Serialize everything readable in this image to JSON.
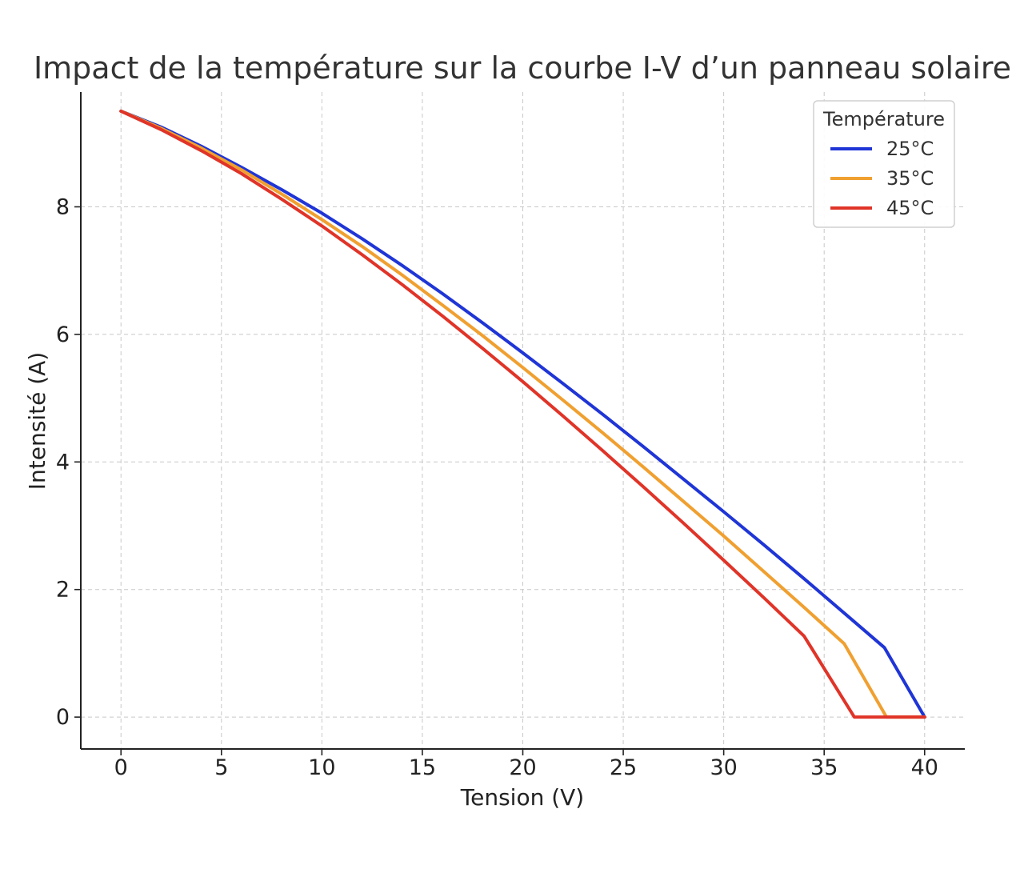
{
  "chart_data": {
    "type": "line",
    "title": "Impact de la température sur la courbe I-V d’un panneau solaire",
    "xlabel": "Tension (V)",
    "ylabel": "Intensité (A)",
    "xlim": [
      -2,
      42
    ],
    "ylim": [
      -0.5,
      9.8
    ],
    "xticks": [
      0,
      5,
      10,
      15,
      20,
      25,
      30,
      35,
      40
    ],
    "yticks": [
      0,
      2,
      4,
      6,
      8
    ],
    "grid": true,
    "legend": {
      "title": "Température",
      "position": "top-right"
    },
    "series": [
      {
        "name": "25°C",
        "color": "#1f35d6",
        "x": [
          0,
          2,
          4,
          6,
          8,
          10,
          12,
          14,
          16,
          18,
          20,
          22,
          24,
          26,
          28,
          30,
          32,
          34,
          36,
          38,
          40
        ],
        "y": [
          9.5,
          9.25,
          8.95,
          8.62,
          8.27,
          7.9,
          7.5,
          7.08,
          6.64,
          6.18,
          5.71,
          5.23,
          4.74,
          4.24,
          3.73,
          3.22,
          2.7,
          2.17,
          1.63,
          1.09,
          0
        ]
      },
      {
        "name": "35°C",
        "color": "#f0a030",
        "x": [
          0,
          2,
          4,
          6,
          8,
          10,
          12,
          14,
          16,
          18,
          20,
          22,
          24,
          26,
          28,
          30,
          32,
          34,
          36,
          38.1,
          40
        ],
        "y": [
          9.5,
          9.23,
          8.92,
          8.58,
          8.2,
          7.8,
          7.38,
          6.93,
          6.46,
          5.98,
          5.48,
          4.97,
          4.45,
          3.92,
          3.38,
          2.84,
          2.28,
          1.72,
          1.15,
          0,
          0
        ]
      },
      {
        "name": "45°C",
        "color": "#e03428",
        "x": [
          0,
          2,
          4,
          6,
          8,
          10,
          12,
          14,
          16,
          18,
          20,
          22,
          24,
          26,
          28,
          30,
          32,
          34,
          36.5,
          40
        ],
        "y": [
          9.5,
          9.21,
          8.88,
          8.52,
          8.12,
          7.7,
          7.25,
          6.78,
          6.29,
          5.78,
          5.26,
          4.72,
          4.17,
          3.61,
          3.04,
          2.46,
          1.87,
          1.27,
          0,
          0
        ]
      }
    ]
  }
}
